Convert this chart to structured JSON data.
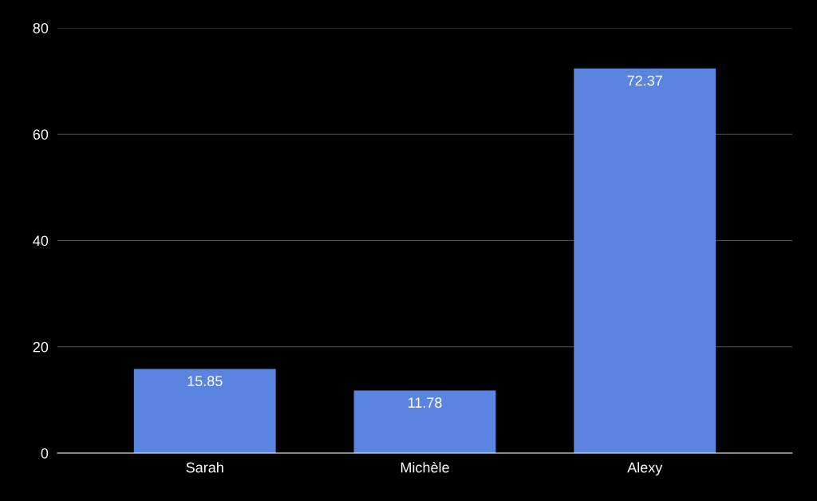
{
  "chart_data": {
    "type": "bar",
    "categories": [
      "Sarah",
      "Michèle",
      "Alexy"
    ],
    "values": [
      15.85,
      11.78,
      72.37
    ],
    "color": "#5b84e0",
    "ylim": [
      0,
      80
    ],
    "yticks": [
      0,
      20,
      40,
      60,
      80
    ],
    "grid": "y",
    "data_labels": true,
    "legend": false
  }
}
